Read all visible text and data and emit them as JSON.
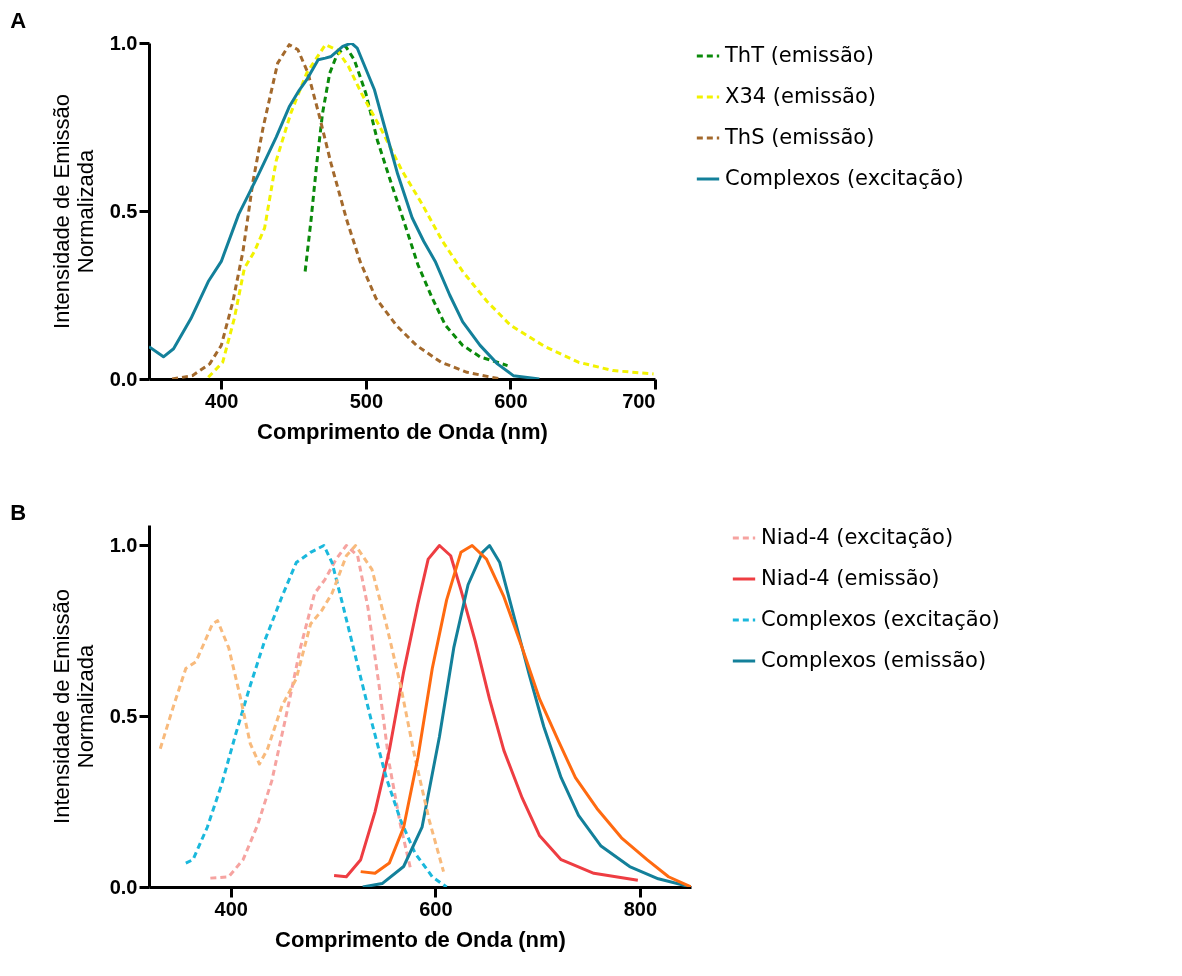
{
  "chart_data": [
    {
      "type": "line",
      "xlabel": "Comprimento de Onda (nm)",
      "ylabel": "Intensidade de Emissão Normalizada",
      "annotations": [
        "A"
      ],
      "xlim": [
        350,
        700
      ],
      "xticks": [
        400,
        500,
        600,
        700
      ],
      "ylim": [
        0,
        1
      ],
      "yticks": [
        {
          "value": 0,
          "label": "0.0"
        },
        {
          "value": 0.5,
          "label": "0.5"
        },
        {
          "value": 1,
          "label": "1.0"
        }
      ],
      "legend": "right",
      "grid": false,
      "series": [
        {
          "name": "ThT (emissão)",
          "color": "#0a8a0a",
          "line_style": "dashed",
          "x": [
            458,
            462,
            466,
            470,
            475,
            480,
            486,
            492,
            500,
            508,
            517,
            527,
            536,
            546,
            555,
            567,
            579,
            598
          ],
          "values": [
            0.32,
            0.47,
            0.64,
            0.79,
            0.91,
            0.965,
            0.99,
            0.95,
            0.85,
            0.71,
            0.59,
            0.46,
            0.34,
            0.24,
            0.16,
            0.1,
            0.066,
            0.04
          ]
        },
        {
          "name": "X34 (emissão)",
          "color": "#f2f200",
          "line_style": "dashed",
          "x": [
            391,
            401,
            409,
            416,
            423,
            430,
            438,
            448,
            459,
            472,
            480,
            488,
            497,
            511,
            525,
            539,
            553,
            567,
            584,
            600,
            624,
            647,
            671,
            699
          ],
          "values": [
            0.005,
            0.05,
            0.18,
            0.33,
            0.38,
            0.45,
            0.65,
            0.79,
            0.91,
            0.995,
            0.98,
            0.93,
            0.85,
            0.74,
            0.62,
            0.52,
            0.41,
            0.32,
            0.23,
            0.16,
            0.096,
            0.05,
            0.025,
            0.015
          ]
        },
        {
          "name": "ThS (emissão)",
          "color": "#a3692c",
          "line_style": "dashed",
          "x": [
            366,
            380,
            392,
            400,
            408,
            415,
            422,
            429,
            439,
            447,
            453,
            460,
            468,
            476,
            487,
            496,
            507,
            521,
            535,
            552,
            570,
            593
          ],
          "values": [
            0,
            0.01,
            0.045,
            0.1,
            0.23,
            0.38,
            0.59,
            0.75,
            0.94,
            0.995,
            0.98,
            0.91,
            0.78,
            0.64,
            0.47,
            0.35,
            0.24,
            0.16,
            0.1,
            0.05,
            0.02,
            0
          ]
        },
        {
          "name": "Complexos (excitação)",
          "color": "#13809a",
          "line_style": "solid",
          "x": [
            350,
            360,
            367,
            379,
            391,
            400,
            412,
            419,
            427,
            438,
            447,
            454,
            459,
            467,
            472,
            476,
            484,
            490,
            494,
            506,
            513,
            522,
            532,
            540,
            548,
            558,
            567,
            579,
            591,
            602,
            620
          ],
          "values": [
            0.096,
            0.066,
            0.09,
            0.18,
            0.29,
            0.35,
            0.49,
            0.55,
            0.62,
            0.72,
            0.81,
            0.86,
            0.89,
            0.95,
            0.955,
            0.96,
            0.99,
            1,
            0.985,
            0.86,
            0.75,
            0.61,
            0.48,
            0.41,
            0.35,
            0.25,
            0.17,
            0.1,
            0.045,
            0.01,
            0
          ]
        }
      ]
    },
    {
      "type": "line",
      "xlabel": "Comprimento de Onda (nm)",
      "ylabel": "Intensidade de Emissão Normalizada",
      "annotations": [
        "B"
      ],
      "xlim": [
        320,
        850
      ],
      "xticks": [
        400,
        600,
        800
      ],
      "ylim": [
        0,
        1.06
      ],
      "yticks": [
        {
          "value": 0,
          "label": "0.0"
        },
        {
          "value": 0.5,
          "label": "0.5"
        },
        {
          "value": 1,
          "label": "1.0"
        }
      ],
      "legend": "right",
      "grid": false,
      "series": [
        {
          "name": "Niad-4 (excitação)",
          "color": "#f6a3a0",
          "line_style": "dashed",
          "x": [
            380,
            398,
            412,
            426,
            440,
            454,
            468,
            482,
            492,
            503,
            513,
            524,
            534,
            545,
            555,
            566,
            576
          ],
          "values": [
            0.026,
            0.03,
            0.08,
            0.18,
            0.31,
            0.5,
            0.7,
            0.86,
            0.9,
            0.96,
            1,
            0.97,
            0.82,
            0.59,
            0.36,
            0.18,
            0.05
          ]
        },
        {
          "name": "Niad-4 (emissão)",
          "color": "#ee3d42",
          "line_style": "solid",
          "x": [
            501,
            513,
            527,
            541,
            555,
            569,
            583,
            593,
            604,
            615,
            625,
            639,
            653,
            667,
            685,
            702,
            723,
            755,
            798
          ],
          "values": [
            0.034,
            0.03,
            0.08,
            0.22,
            0.4,
            0.63,
            0.83,
            0.96,
            1,
            0.97,
            0.87,
            0.72,
            0.55,
            0.4,
            0.26,
            0.15,
            0.08,
            0.04,
            0.02
          ]
        },
        {
          "color": "#f8ba7c",
          "line_style": "dashed",
          "x": [
            331,
            344,
            356,
            366,
            382,
            387,
            398,
            409,
            419,
            428,
            436,
            450,
            464,
            478,
            489,
            499,
            513,
            522,
            538,
            552,
            566,
            580,
            594,
            608
          ],
          "values": [
            0.405,
            0.53,
            0.64,
            0.66,
            0.77,
            0.78,
            0.7,
            0.56,
            0.42,
            0.36,
            0.405,
            0.53,
            0.61,
            0.77,
            0.81,
            0.86,
            0.97,
            1,
            0.93,
            0.77,
            0.59,
            0.38,
            0.196,
            0.045
          ]
        },
        {
          "color": "#ff6a10",
          "line_style": "solid",
          "x": [
            527,
            541,
            555,
            569,
            583,
            597,
            611,
            625,
            636,
            650,
            667,
            685,
            702,
            720,
            737,
            758,
            782,
            807,
            828,
            850
          ],
          "values": [
            0.045,
            0.04,
            0.07,
            0.175,
            0.38,
            0.64,
            0.84,
            0.98,
            1,
            0.96,
            0.85,
            0.7,
            0.55,
            0.43,
            0.32,
            0.23,
            0.144,
            0.08,
            0.03,
            0
          ]
        },
        {
          "name": "Complexos (excitação)",
          "color": "#1ab8dc",
          "line_style": "dashed",
          "x": [
            356,
            363,
            377,
            391,
            405,
            419,
            433,
            450,
            464,
            478,
            491,
            499,
            510,
            524,
            538,
            552,
            566,
            580,
            597,
            611
          ],
          "values": [
            0.07,
            0.08,
            0.175,
            0.3,
            0.45,
            0.59,
            0.72,
            0.85,
            0.95,
            0.98,
            1,
            0.95,
            0.82,
            0.65,
            0.48,
            0.32,
            0.196,
            0.1,
            0.03,
            0
          ]
        },
        {
          "name": "Complexos (emissão)",
          "color": "#13809a",
          "line_style": "solid",
          "x": [
            529,
            548,
            569,
            587,
            604,
            618,
            632,
            646,
            653,
            663,
            678,
            692,
            706,
            723,
            740,
            762,
            790,
            818,
            850
          ],
          "values": [
            0,
            0.01,
            0.06,
            0.175,
            0.44,
            0.7,
            0.885,
            0.98,
            1,
            0.95,
            0.78,
            0.62,
            0.47,
            0.32,
            0.21,
            0.12,
            0.06,
            0.024,
            0
          ]
        }
      ]
    }
  ]
}
